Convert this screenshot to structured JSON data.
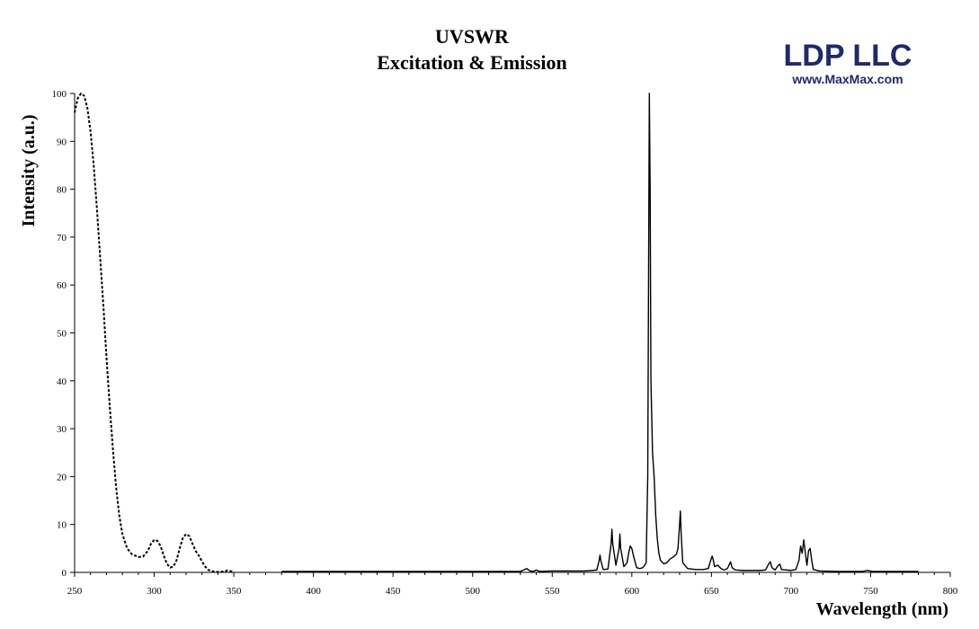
{
  "brand": {
    "name": "LDP LLC",
    "url": "www.MaxMax.com"
  },
  "chart_data": {
    "type": "line",
    "title": "UVSWR",
    "subtitle": "Excitation & Emission",
    "xlabel": "Wavelength (nm)",
    "ylabel": "Intensity (a.u.)",
    "xlim": [
      250,
      800
    ],
    "ylim": [
      0,
      100
    ],
    "xticks": [
      250,
      300,
      350,
      400,
      450,
      500,
      550,
      600,
      650,
      700,
      750,
      800
    ],
    "yticks": [
      0,
      10,
      20,
      30,
      40,
      50,
      60,
      70,
      80,
      90,
      100
    ],
    "grid": false,
    "legend": "none",
    "series": [
      {
        "style": "dashed",
        "color": "#000000",
        "points": [
          [
            250,
            96
          ],
          [
            252,
            99
          ],
          [
            254,
            100
          ],
          [
            256,
            99.5
          ],
          [
            258,
            97
          ],
          [
            260,
            92
          ],
          [
            262,
            85
          ],
          [
            264,
            76
          ],
          [
            266,
            66
          ],
          [
            268,
            56
          ],
          [
            270,
            45
          ],
          [
            272,
            35
          ],
          [
            274,
            26
          ],
          [
            276,
            18
          ],
          [
            278,
            12
          ],
          [
            280,
            8
          ],
          [
            283,
            5
          ],
          [
            286,
            3.8
          ],
          [
            290,
            3.2
          ],
          [
            293,
            3.3
          ],
          [
            296,
            4.5
          ],
          [
            298,
            6
          ],
          [
            300,
            6.8
          ],
          [
            302,
            6.6
          ],
          [
            304,
            5.5
          ],
          [
            306,
            3.5
          ],
          [
            308,
            1.8
          ],
          [
            310,
            1
          ],
          [
            312,
            1.2
          ],
          [
            314,
            2.5
          ],
          [
            316,
            5
          ],
          [
            318,
            7.2
          ],
          [
            320,
            8
          ],
          [
            322,
            7.6
          ],
          [
            324,
            6
          ],
          [
            326,
            4.5
          ],
          [
            328,
            3.5
          ],
          [
            330,
            2.3
          ],
          [
            332,
            1.2
          ],
          [
            334,
            0.5
          ],
          [
            337,
            0.2
          ],
          [
            340,
            0.1
          ],
          [
            344,
            0.2
          ],
          [
            346,
            0.4
          ],
          [
            350,
            0.1
          ]
        ]
      },
      {
        "style": "solid",
        "color": "#000000",
        "points": [
          [
            380,
            0.2
          ],
          [
            450,
            0.2
          ],
          [
            530,
            0.2
          ],
          [
            532,
            0.5
          ],
          [
            534,
            0.8
          ],
          [
            536,
            0.3
          ],
          [
            538,
            0.2
          ],
          [
            540,
            0.5
          ],
          [
            542,
            0.2
          ],
          [
            550,
            0.3
          ],
          [
            560,
            0.3
          ],
          [
            570,
            0.3
          ],
          [
            575,
            0.4
          ],
          [
            578,
            0.5
          ],
          [
            579.5,
            2.5
          ],
          [
            580,
            3.6
          ],
          [
            580.5,
            2.5
          ],
          [
            582,
            0.6
          ],
          [
            585,
            0.7
          ],
          [
            587,
            6
          ],
          [
            587.5,
            9
          ],
          [
            588,
            6
          ],
          [
            590,
            1.5
          ],
          [
            592,
            5
          ],
          [
            592.5,
            8
          ],
          [
            593,
            5
          ],
          [
            595,
            1.2
          ],
          [
            597,
            2
          ],
          [
            598,
            4
          ],
          [
            599,
            5.5
          ],
          [
            600,
            5
          ],
          [
            601,
            3.5
          ],
          [
            603,
            1
          ],
          [
            605,
            0.8
          ],
          [
            607,
            1
          ],
          [
            609,
            2
          ],
          [
            610,
            20
          ],
          [
            610.5,
            60
          ],
          [
            611,
            100
          ],
          [
            611.5,
            80
          ],
          [
            612,
            40
          ],
          [
            613,
            25
          ],
          [
            614,
            20
          ],
          [
            615,
            12
          ],
          [
            616,
            7
          ],
          [
            617,
            4
          ],
          [
            618,
            2.5
          ],
          [
            620,
            1.8
          ],
          [
            622,
            2
          ],
          [
            624,
            2.8
          ],
          [
            626,
            3.2
          ],
          [
            628,
            3.8
          ],
          [
            629,
            5
          ],
          [
            630,
            10
          ],
          [
            630.5,
            12.8
          ],
          [
            631,
            8
          ],
          [
            632,
            2
          ],
          [
            635,
            0.8
          ],
          [
            640,
            0.6
          ],
          [
            645,
            0.6
          ],
          [
            648,
            0.8
          ],
          [
            650,
            3
          ],
          [
            650.5,
            3.4
          ],
          [
            651,
            2.8
          ],
          [
            652,
            1.2
          ],
          [
            654,
            1.5
          ],
          [
            656,
            0.8
          ],
          [
            658,
            0.5
          ],
          [
            660,
            0.8
          ],
          [
            662,
            2.2
          ],
          [
            663,
            1
          ],
          [
            665,
            0.5
          ],
          [
            670,
            0.4
          ],
          [
            680,
            0.4
          ],
          [
            684,
            0.5
          ],
          [
            686,
            1.8
          ],
          [
            687,
            2.2
          ],
          [
            688,
            1
          ],
          [
            690,
            0.5
          ],
          [
            692,
            1.5
          ],
          [
            693,
            1.7
          ],
          [
            694,
            0.6
          ],
          [
            697,
            0.5
          ],
          [
            700,
            0.4
          ],
          [
            703,
            0.6
          ],
          [
            705,
            2.5
          ],
          [
            706,
            5.5
          ],
          [
            707,
            4
          ],
          [
            708,
            6.8
          ],
          [
            709,
            4
          ],
          [
            710,
            1.5
          ],
          [
            711,
            4.5
          ],
          [
            712,
            5
          ],
          [
            713,
            2.5
          ],
          [
            714,
            0.6
          ],
          [
            718,
            0.3
          ],
          [
            730,
            0.2
          ],
          [
            745,
            0.2
          ],
          [
            748,
            0.4
          ],
          [
            751,
            0.2
          ],
          [
            760,
            0.2
          ],
          [
            780,
            0.2
          ]
        ]
      }
    ]
  }
}
